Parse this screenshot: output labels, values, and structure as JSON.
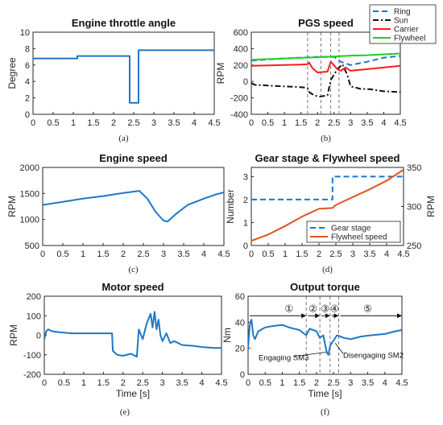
{
  "colors": {
    "blue": "#1f77c4",
    "red": "#ff1a1a",
    "black": "#111111",
    "green": "#22cc22",
    "orange": "#e0541c",
    "axis": "#262626"
  },
  "chart_data": [
    {
      "panel": "a",
      "type": "line",
      "title": "Engine throttle angle",
      "xlabel": "",
      "ylabel": "Degree",
      "caption": "(a)",
      "xlim": [
        0,
        4.5
      ],
      "ylim": [
        0,
        10
      ],
      "xticks": [
        0,
        0.5,
        1,
        1.5,
        2,
        2.5,
        3,
        3.5,
        4,
        4.5
      ],
      "yticks": [
        0,
        2,
        4,
        6,
        8,
        10
      ],
      "ytick_labels": [
        "0",
        "2",
        "4",
        "6",
        "8",
        "10"
      ],
      "series": [
        {
          "color_key": "blue",
          "style": "solid",
          "x": [
            0,
            1.1,
            1.1,
            2.4,
            2.4,
            2.55,
            2.55,
            2.62,
            2.62,
            4.5
          ],
          "y": [
            6.8,
            6.8,
            7.1,
            7.1,
            1.4,
            1.4,
            1.4,
            1.4,
            7.8,
            7.8
          ]
        }
      ]
    },
    {
      "panel": "b",
      "type": "line",
      "title": "PGS speed",
      "xlabel": "",
      "ylabel": "RPM",
      "caption": "(b)",
      "xlim": [
        0,
        4.5
      ],
      "ylim": [
        -400,
        600
      ],
      "xticks": [
        0,
        0.5,
        1,
        1.5,
        2,
        2.5,
        3,
        3.5,
        4,
        4.5
      ],
      "yticks": [
        -400,
        -200,
        0,
        200,
        400,
        600
      ],
      "ytick_labels": [
        "-400",
        "-200",
        "0",
        "200",
        "400",
        "600"
      ],
      "vlines": [
        1.7,
        2.1,
        2.4,
        2.65
      ],
      "legend": [
        "Ring",
        "Sun",
        "Carrier",
        "Flywheel"
      ],
      "legend_position": "top-right",
      "series": [
        {
          "name": "Ring",
          "color_key": "blue",
          "style": "dash",
          "x": [
            0,
            1,
            2,
            2.5,
            2.7,
            3,
            3.5,
            4,
            4.5
          ],
          "y": [
            255,
            280,
            300,
            300,
            240,
            200,
            240,
            290,
            310
          ]
        },
        {
          "name": "Sun",
          "color_key": "black",
          "style": "dashdot",
          "x": [
            0,
            0.1,
            0.5,
            1,
            1.5,
            1.7,
            1.75,
            1.9,
            2.05,
            2.3,
            2.4,
            2.6,
            2.75,
            2.9,
            3.0,
            3.3,
            3.6,
            4.0,
            4.5
          ],
          "y": [
            -20,
            -40,
            -50,
            -60,
            -70,
            -80,
            -130,
            -170,
            -185,
            -170,
            20,
            150,
            210,
            80,
            -60,
            -90,
            -95,
            -120,
            -130
          ]
        },
        {
          "name": "Carrier",
          "color_key": "red",
          "style": "solid",
          "x": [
            0,
            0.5,
            1,
            1.5,
            1.7,
            1.75,
            1.85,
            2.0,
            2.3,
            2.4,
            2.6,
            2.7,
            2.85,
            3.0,
            3.5,
            4.0,
            4.5
          ],
          "y": [
            190,
            195,
            200,
            205,
            210,
            230,
            160,
            110,
            120,
            240,
            150,
            130,
            170,
            130,
            150,
            170,
            190
          ]
        },
        {
          "name": "Flywheel",
          "color_key": "green",
          "style": "solid",
          "x": [
            0,
            1,
            2,
            2.5,
            3,
            3.5,
            4,
            4.5
          ],
          "y": [
            265,
            280,
            295,
            305,
            315,
            320,
            330,
            340
          ]
        }
      ]
    },
    {
      "panel": "c",
      "type": "line",
      "title": "Engine speed",
      "xlabel": "",
      "ylabel": "RPM",
      "caption": "(c)",
      "xlim": [
        0,
        4.5
      ],
      "ylim": [
        500,
        2000
      ],
      "xticks": [
        0,
        0.5,
        1,
        1.5,
        2,
        2.5,
        3,
        3.5,
        4,
        4.5
      ],
      "yticks": [
        500,
        1000,
        1500,
        2000
      ],
      "ytick_labels": [
        "500",
        "1000",
        "1500",
        "2000"
      ],
      "series": [
        {
          "color_key": "blue",
          "style": "solid",
          "x": [
            0,
            0.5,
            1,
            1.5,
            2,
            2.4,
            2.6,
            2.8,
            3.0,
            3.1,
            3.3,
            3.6,
            4.0,
            4.3,
            4.5
          ],
          "y": [
            1280,
            1340,
            1400,
            1450,
            1510,
            1550,
            1400,
            1150,
            980,
            960,
            1100,
            1280,
            1400,
            1480,
            1520
          ]
        }
      ]
    },
    {
      "panel": "d",
      "type": "line",
      "title": "Gear stage & Flywheel speed",
      "xlabel": "",
      "ylabel": "Number",
      "ylabel_right": "RPM",
      "caption": "(d)",
      "xlim": [
        0,
        4.5
      ],
      "ylim": [
        0,
        3.4
      ],
      "ylim_right": [
        250,
        350
      ],
      "xticks": [
        0,
        0.5,
        1,
        1.5,
        2,
        2.5,
        3,
        3.5,
        4,
        4.5
      ],
      "yticks": [
        0,
        1,
        2,
        3
      ],
      "ytick_labels": [
        "0",
        "1",
        "2",
        "3"
      ],
      "yticks_right": [
        250,
        300,
        350
      ],
      "ytick_labels_right": [
        "250",
        "300",
        "350"
      ],
      "legend": [
        "Gear stage",
        "Flywheel speed"
      ],
      "legend_position": "bottom-right",
      "series": [
        {
          "name": "Gear stage",
          "color_key": "blue",
          "style": "dash",
          "axis": "left",
          "x": [
            0,
            2.4,
            2.4,
            4.5
          ],
          "y": [
            2,
            2,
            3,
            3
          ]
        },
        {
          "name": "Flywheel speed",
          "color_key": "orange",
          "style": "solid",
          "axis": "right",
          "x": [
            0,
            0.5,
            1,
            1.5,
            1.8,
            2.0,
            2.4,
            2.5,
            3,
            3.5,
            4,
            4.5
          ],
          "y": [
            256,
            264,
            275,
            287,
            293,
            297,
            298,
            302,
            312,
            322,
            333,
            347
          ]
        }
      ]
    },
    {
      "panel": "e",
      "type": "line",
      "title": "Motor speed",
      "xlabel": "Time [s]",
      "ylabel": "RPM",
      "caption": "(e)",
      "xlim": [
        0,
        4.5
      ],
      "ylim": [
        -200,
        200
      ],
      "xticks": [
        0,
        0.5,
        1,
        1.5,
        2,
        2.5,
        3,
        3.5,
        4,
        4.5
      ],
      "yticks": [
        -200,
        -100,
        0,
        100,
        200
      ],
      "ytick_labels": [
        "-200",
        "-100",
        "0",
        "100",
        "200"
      ],
      "series": [
        {
          "color_key": "blue",
          "style": "solid",
          "x": [
            0,
            0.05,
            0.1,
            0.2,
            0.4,
            0.7,
            1.0,
            1.3,
            1.6,
            1.72,
            1.74,
            1.85,
            2.0,
            2.2,
            2.35,
            2.4,
            2.5,
            2.6,
            2.7,
            2.75,
            2.8,
            2.85,
            2.9,
            2.95,
            3.0,
            3.1,
            3.2,
            3.3,
            3.5,
            3.8,
            4.0,
            4.3,
            4.5
          ],
          "y": [
            -20,
            20,
            30,
            20,
            15,
            10,
            10,
            10,
            10,
            10,
            -80,
            -100,
            -105,
            -95,
            -110,
            30,
            -20,
            60,
            110,
            40,
            120,
            30,
            80,
            0,
            -30,
            10,
            -40,
            -30,
            -50,
            -55,
            -60,
            -65,
            -65
          ]
        }
      ]
    },
    {
      "panel": "f",
      "type": "line",
      "title": "Output torque",
      "xlabel": "Time [s]",
      "ylabel": "Nm",
      "caption": "(f)",
      "xlim": [
        0,
        4.5
      ],
      "ylim": [
        0,
        60
      ],
      "xticks": [
        0,
        0.5,
        1,
        1.5,
        2,
        2.5,
        3,
        3.5,
        4,
        4.5
      ],
      "yticks": [
        0,
        20,
        40,
        60
      ],
      "ytick_labels": [
        "0",
        "20",
        "40",
        "60"
      ],
      "vlines": [
        1.7,
        2.1,
        2.4,
        2.65
      ],
      "stages": [
        {
          "label": "①",
          "x": 1.2
        },
        {
          "label": "②",
          "x": 1.9
        },
        {
          "label": "③",
          "x": 2.25
        },
        {
          "label": "④",
          "x": 2.53
        },
        {
          "label": "⑤",
          "x": 3.5
        }
      ],
      "arrow_y": 45,
      "annotations": [
        "Engaging SM3",
        "Disengaging SM2"
      ],
      "series": [
        {
          "color_key": "blue",
          "style": "solid",
          "x": [
            0,
            0.05,
            0.1,
            0.15,
            0.2,
            0.3,
            0.5,
            0.7,
            1.0,
            1.2,
            1.5,
            1.7,
            1.8,
            2.0,
            2.1,
            2.2,
            2.3,
            2.35,
            2.4,
            2.5,
            2.6,
            2.7,
            2.8,
            3.0,
            3.3,
            3.6,
            4.0,
            4.3,
            4.5
          ],
          "y": [
            20,
            38,
            42,
            30,
            27,
            33,
            36,
            37,
            38,
            36,
            34,
            30,
            35,
            33,
            28,
            30,
            17,
            15,
            22,
            26,
            30,
            29,
            28,
            27,
            29,
            30,
            31,
            33,
            34
          ]
        }
      ]
    }
  ]
}
